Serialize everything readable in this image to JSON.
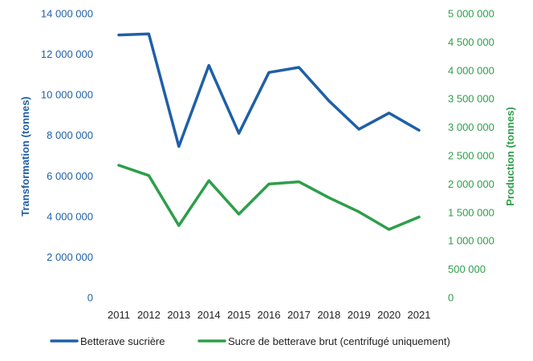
{
  "chart_data": {
    "type": "line",
    "x": [
      "2011",
      "2012",
      "2013",
      "2014",
      "2015",
      "2016",
      "2017",
      "2018",
      "2019",
      "2020",
      "2021"
    ],
    "series": [
      {
        "name": "Betterave sucrière",
        "axis": "left",
        "color": "#1f5fa8",
        "values": [
          12950000,
          13000000,
          7450000,
          11450000,
          8100000,
          11100000,
          11350000,
          9700000,
          8300000,
          9100000,
          8250000
        ]
      },
      {
        "name": "Sucre de betterave brut (centrifugé uniquement)",
        "axis": "right",
        "color": "#2e9e4a",
        "values": [
          2330000,
          2150000,
          1270000,
          2060000,
          1470000,
          2000000,
          2040000,
          1760000,
          1510000,
          1200000,
          1420000
        ]
      }
    ],
    "y_left": {
      "label": "Transformation (tonnes)",
      "ylim": [
        0,
        14000000
      ],
      "ticks": [
        0,
        2000000,
        4000000,
        6000000,
        8000000,
        10000000,
        12000000,
        14000000
      ],
      "tick_labels": [
        "0",
        "2 000 000",
        "4 000 000",
        "6 000 000",
        "8 000 000",
        "10 000 000",
        "12 000 000",
        "14 000 000"
      ]
    },
    "y_right": {
      "label": "Production (tonnes)",
      "ylim": [
        0,
        5000000
      ],
      "ticks": [
        0,
        500000,
        1000000,
        1500000,
        2000000,
        2500000,
        3000000,
        3500000,
        4000000,
        4500000,
        5000000
      ],
      "tick_labels": [
        "0",
        "500 000",
        "1 000 000",
        "1 500 000",
        "2 000 000",
        "2 500 000",
        "3 000 000",
        "3 500 000",
        "4 000 000",
        "4 500 000",
        "5 000 000"
      ]
    },
    "grid": false,
    "legend": "bottom",
    "axis_colors": {
      "left": "#1f5fa8",
      "right": "#2e9e4a",
      "x": "#222222"
    }
  }
}
